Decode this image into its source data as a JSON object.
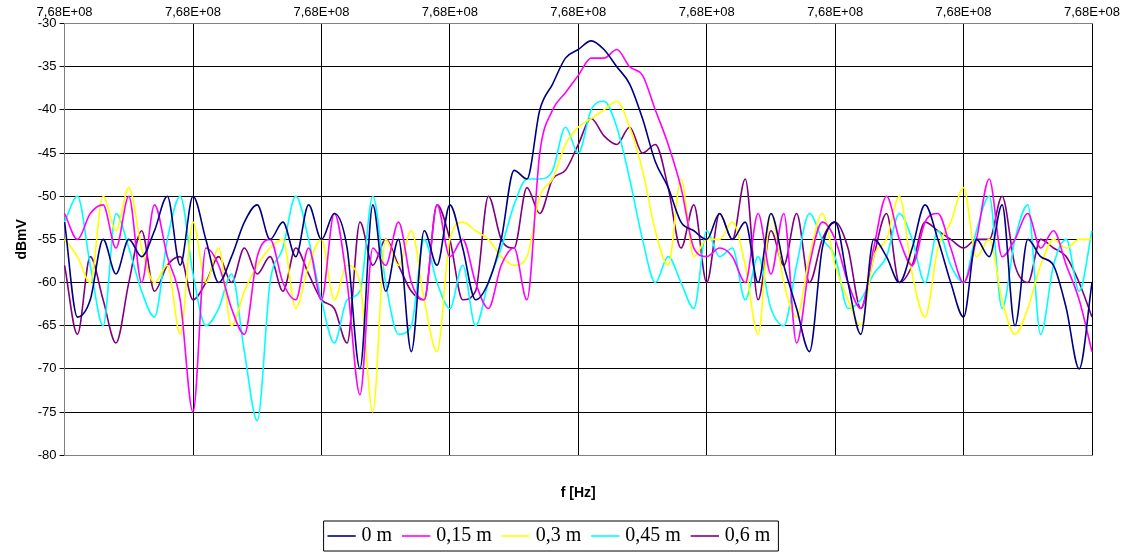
{
  "chart_data": {
    "type": "line",
    "xlabel": "f [Hz]",
    "ylabel": "dBmV",
    "categories": [
      "7,68E+08",
      null,
      null,
      null,
      null,
      null,
      null,
      null,
      null,
      null,
      "7,68E+08",
      null,
      null,
      null,
      null,
      null,
      null,
      null,
      null,
      null,
      "7,68E+08",
      null,
      null,
      null,
      null,
      null,
      null,
      null,
      null,
      null,
      "7,68E+08",
      null,
      null,
      null,
      null,
      null,
      null,
      null,
      null,
      null,
      "7,68E+08",
      null,
      null,
      null,
      null,
      null,
      null,
      null,
      null,
      null,
      "7,68E+08",
      null,
      null,
      null,
      null,
      null,
      null,
      null,
      null,
      null,
      "7,68E+08",
      null,
      null,
      null,
      null,
      null,
      null,
      null,
      null,
      null,
      "7,68E+08",
      null,
      null,
      null,
      null,
      null,
      null,
      null,
      null,
      null,
      "7,68E+08"
    ],
    "ylim": [
      -80,
      -30
    ],
    "yticks": [
      -80,
      -75,
      -70,
      -65,
      -60,
      -55,
      -50,
      -45,
      -40,
      -35,
      -30
    ],
    "grid": true,
    "legend": "bottom",
    "marker": "none",
    "line_style": "solid",
    "series": [
      {
        "name": "0 m",
        "color": "#000080",
        "values": [
          -53,
          -64,
          -62,
          -55,
          -59,
          -55,
          -57,
          -54,
          -50,
          -58,
          -50,
          -55,
          -60,
          -57,
          -53,
          -51,
          -55,
          -53,
          -57,
          -51,
          -55,
          -52,
          -56,
          -70,
          -51,
          -61,
          -55,
          -68,
          -54,
          -58,
          -51,
          -56,
          -62,
          -60,
          -55,
          -47,
          -48,
          -40,
          -37,
          -34,
          -33,
          -32,
          -33,
          -35,
          -37,
          -41,
          -46,
          -49,
          -53,
          -54,
          -55,
          -52,
          -55,
          -53,
          -60,
          -52,
          -58,
          -63,
          -68,
          -56,
          -53,
          -60,
          -66,
          -55,
          -57,
          -60,
          -56,
          -51,
          -55,
          -60,
          -64,
          -55,
          -57,
          -51,
          -65,
          -55,
          -57,
          -58,
          -63,
          -70,
          -60
        ]
      },
      {
        "name": "0,15 m",
        "color": "#ff00ff",
        "values": [
          -52,
          -55,
          -52,
          -51,
          -56,
          -50,
          -60,
          -51,
          -57,
          -62,
          -75,
          -56,
          -58,
          -63,
          -66,
          -57,
          -55,
          -60,
          -62,
          -56,
          -62,
          -52,
          -60,
          -73,
          -56,
          -58,
          -53,
          -60,
          -62,
          -51,
          -57,
          -55,
          -60,
          -63,
          -58,
          -56,
          -62,
          -45,
          -40,
          -38,
          -36,
          -34,
          -34,
          -33,
          -35,
          -36,
          -40,
          -44,
          -49,
          -56,
          -57,
          -56,
          -57,
          -60,
          -52,
          -59,
          -52,
          -67,
          -58,
          -53,
          -55,
          -60,
          -63,
          -56,
          -50,
          -55,
          -58,
          -53,
          -52,
          -56,
          -60,
          -55,
          -48,
          -57,
          -55,
          -52,
          -56,
          -54,
          -58,
          -62,
          -68
        ]
      },
      {
        "name": "0,3 m",
        "color": "#ffff00",
        "values": [
          -55,
          -57,
          -60,
          -50,
          -54,
          -49,
          -56,
          -60,
          -58,
          -66,
          -53,
          -60,
          -56,
          -65,
          -61,
          -58,
          -56,
          -55,
          -63,
          -58,
          -55,
          -62,
          -58,
          -60,
          -75,
          -55,
          -58,
          -54,
          -62,
          -68,
          -55,
          -53,
          -54,
          -55,
          -57,
          -58,
          -57,
          -50,
          -48,
          -44,
          -42,
          -41,
          -40,
          -39,
          -42,
          -47,
          -54,
          -58,
          -48,
          -57,
          -55,
          -55,
          -53,
          -58,
          -66,
          -52,
          -60,
          -64,
          -57,
          -52,
          -58,
          -62,
          -65,
          -57,
          -55,
          -50,
          -59,
          -64,
          -56,
          -53,
          -49,
          -57,
          -55,
          -62,
          -66,
          -63,
          -58,
          -55,
          -56,
          -55,
          -55
        ]
      },
      {
        "name": "0,45 m",
        "color": "#00ffff",
        "values": [
          -53,
          -50,
          -58,
          -65,
          -52,
          -56,
          -61,
          -64,
          -55,
          -50,
          -59,
          -65,
          -63,
          -59,
          -68,
          -76,
          -60,
          -56,
          -50,
          -55,
          -62,
          -67,
          -62,
          -61,
          -50,
          -60,
          -66,
          -65,
          -55,
          -60,
          -63,
          -58,
          -65,
          -60,
          -56,
          -51,
          -48,
          -48,
          -47,
          -42,
          -45,
          -40,
          -39,
          -42,
          -48,
          -55,
          -60,
          -57,
          -60,
          -63,
          -54,
          -57,
          -56,
          -62,
          -57,
          -63,
          -65,
          -58,
          -52,
          -55,
          -57,
          -63,
          -62,
          -59,
          -57,
          -52,
          -55,
          -60,
          -54,
          -58,
          -60,
          -54,
          -50,
          -63,
          -55,
          -51,
          -66,
          -58,
          -55,
          -61,
          -54
        ]
      },
      {
        "name": "0,6 m",
        "color": "#800080",
        "values": [
          -58,
          -66,
          -57,
          -62,
          -67,
          -60,
          -54,
          -61,
          -58,
          -57,
          -62,
          -60,
          -57,
          -60,
          -56,
          -59,
          -57,
          -61,
          -56,
          -59,
          -62,
          -63,
          -67,
          -53,
          -58,
          -55,
          -58,
          -61,
          -62,
          -51,
          -55,
          -62,
          -61,
          -50,
          -55,
          -56,
          -49,
          -52,
          -48,
          -47,
          -44,
          -41,
          -43,
          -44,
          -42,
          -45,
          -44,
          -49,
          -56,
          -51,
          -60,
          -52,
          -55,
          -48,
          -62,
          -54,
          -58,
          -52,
          -60,
          -55,
          -53,
          -56,
          -63,
          -57,
          -52,
          -60,
          -58,
          -53,
          -54,
          -55,
          -56,
          -55,
          -55,
          -50,
          -58,
          -60,
          -55,
          -56,
          -57,
          -60,
          -64
        ]
      }
    ]
  }
}
